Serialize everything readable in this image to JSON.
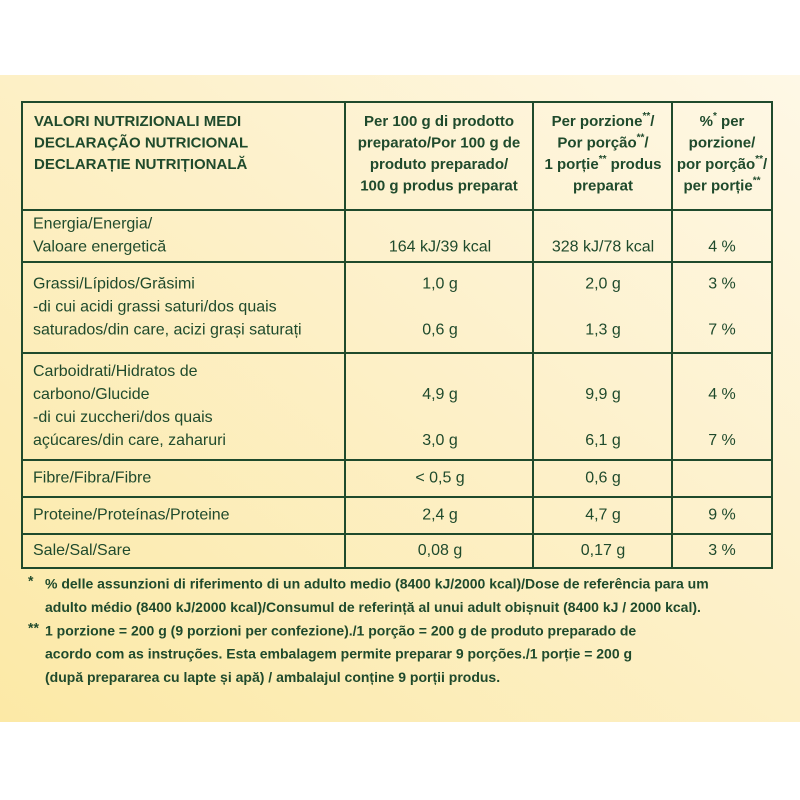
{
  "header": {
    "columns": [
      {
        "lines": [
          "VALORI NUTRIZIONALI MEDI",
          "DECLARAÇÃO NUTRICIONAL",
          "DECLARAȚIE NUTRIȚIONALĂ"
        ]
      },
      {
        "lines": [
          "Per 100 g di prodotto",
          "preparato/Por 100 g de",
          "produto preparado/",
          "100 g produs preparat"
        ]
      },
      {
        "lines": [
          [
            "Per porzione",
            "**",
            "/"
          ],
          [
            "Por porção",
            "**",
            "/"
          ],
          [
            "1 porție",
            "**",
            " produs"
          ],
          "preparat"
        ]
      },
      {
        "lines": [
          [
            "%",
            "*",
            " per"
          ],
          "porzione/",
          [
            "por porção",
            "**",
            "/"
          ],
          [
            "per porție",
            "**"
          ]
        ]
      }
    ]
  },
  "rows": [
    [
      [
        "Energia/Energia/",
        null,
        null,
        null
      ],
      [
        "Valoare energetică",
        "164 kJ/39 kcal",
        "328 kJ/78 kcal",
        "4 %"
      ]
    ],
    [
      [
        "Grassi/Lípidos/Grăsimi",
        "1,0 g",
        "2,0 g",
        "3 %"
      ],
      [
        "-di cui acidi grassi saturi/dos quais",
        null,
        null,
        null
      ],
      [
        " saturados/din care, acizi grași saturați",
        "0,6 g",
        "1,3 g",
        "7 %"
      ]
    ],
    [
      [
        "Carboidrati/Hidratos de",
        null,
        null,
        null
      ],
      [
        "carbono/Glucide",
        "4,9 g",
        "9,9 g",
        "4 %"
      ],
      [
        "-di cui zuccheri/dos quais",
        null,
        null,
        null
      ],
      [
        " açúcares/din care, zaharuri",
        "3,0 g",
        "6,1 g",
        "7 %"
      ]
    ],
    [
      [
        "Fibre/Fibra/Fibre",
        "< 0,5 g",
        "0,6 g",
        null
      ]
    ],
    [
      [
        "Proteine/Proteínas/Proteine",
        "2,4 g",
        "4,7 g",
        "9 %"
      ]
    ],
    [
      [
        "Sale/Sal/Sare",
        "0,08 g",
        "0,17 g",
        "3 %"
      ]
    ]
  ],
  "footnotes": [
    {
      "marker": "*",
      "lines": [
        "% delle assunzioni di riferimento di un adulto medio (8400 kJ/2000 kcal)/Dose de referência para um",
        "adulto médio (8400 kJ/2000 kcal)/Consumul de referință al unui adult obișnuit (8400 kJ / 2000 kcal)."
      ]
    },
    {
      "marker": "**",
      "lines": [
        "1 porzione = 200 g (9 porzioni per confezione)./1 porção = 200 g de produto preparado de",
        "acordo com as instruções. Esta embalagem permite preparar 9 porções./1 porție = 200 g",
        "(după prepararea cu lapte și apă) / ambalajul conține 9 porții produs."
      ]
    }
  ]
}
